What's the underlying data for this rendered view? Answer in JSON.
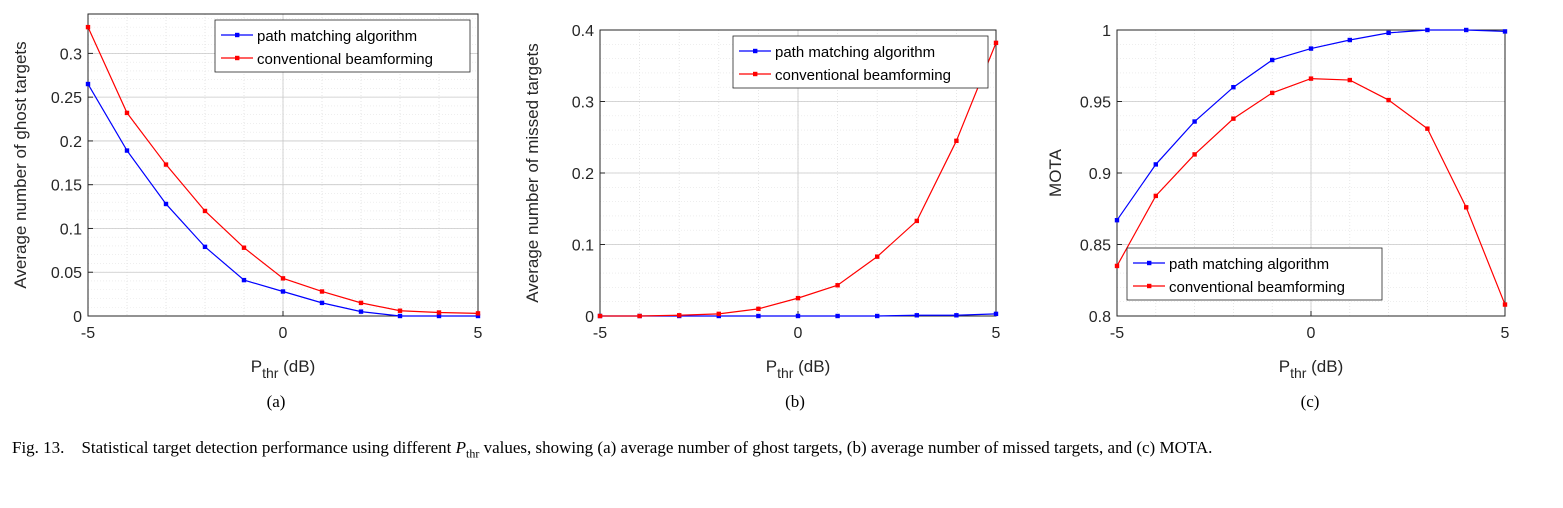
{
  "chart_data": [
    {
      "type": "line",
      "panel_label": "(a)",
      "xlabel_main": "P",
      "xlabel_sub": "thr",
      "xlabel_unit": " (dB)",
      "ylabel": "Average number of ghost targets",
      "xlim": [
        -5,
        5
      ],
      "ylim": [
        0,
        0.345
      ],
      "xticks": [
        -5,
        0,
        5
      ],
      "xtick_labels": [
        "-5",
        "0",
        "5"
      ],
      "yticks": [
        0,
        0.05,
        0.1,
        0.15,
        0.2,
        0.25,
        0.3
      ],
      "ytick_labels": [
        "0",
        "0.05",
        "0.1",
        "0.15",
        "0.2",
        "0.25",
        "0.3"
      ],
      "legend_position": "top-right",
      "x": [
        -5,
        -4,
        -3,
        -2,
        -1,
        0,
        1,
        2,
        3,
        4,
        5
      ],
      "series": [
        {
          "name": "path matching algorithm",
          "color": "#0000ff",
          "values": [
            0.265,
            0.189,
            0.128,
            0.079,
            0.041,
            0.028,
            0.015,
            0.005,
            0.0,
            0.0,
            0.0
          ]
        },
        {
          "name": "conventional beamforming",
          "color": "#ff0000",
          "values": [
            0.33,
            0.232,
            0.173,
            0.12,
            0.078,
            0.043,
            0.028,
            0.015,
            0.006,
            0.004,
            0.003
          ]
        }
      ]
    },
    {
      "type": "line",
      "panel_label": "(b)",
      "xlabel_main": "P",
      "xlabel_sub": "thr",
      "xlabel_unit": " (dB)",
      "ylabel": "Average number of missed targets",
      "xlim": [
        -5,
        5
      ],
      "ylim": [
        0,
        0.4
      ],
      "xticks": [
        -5,
        0,
        5
      ],
      "xtick_labels": [
        "-5",
        "0",
        "5"
      ],
      "yticks": [
        0,
        0.1,
        0.2,
        0.3,
        0.4
      ],
      "ytick_labels": [
        "0",
        "0.1",
        "0.2",
        "0.3",
        "0.4"
      ],
      "legend_position": "top-right",
      "x": [
        -5,
        -4,
        -3,
        -2,
        -1,
        0,
        1,
        2,
        3,
        4,
        5
      ],
      "series": [
        {
          "name": "path matching algorithm",
          "color": "#0000ff",
          "values": [
            0.0,
            0.0,
            0.0,
            0.0,
            0.0,
            0.0,
            0.0,
            0.0,
            0.001,
            0.001,
            0.003
          ]
        },
        {
          "name": "conventional beamforming",
          "color": "#ff0000",
          "values": [
            0.0,
            0.0,
            0.001,
            0.003,
            0.01,
            0.025,
            0.043,
            0.083,
            0.133,
            0.245,
            0.382
          ]
        }
      ]
    },
    {
      "type": "line",
      "panel_label": "(c)",
      "xlabel_main": "P",
      "xlabel_sub": "thr",
      "xlabel_unit": " (dB)",
      "ylabel": "MOTA",
      "xlim": [
        -5,
        5
      ],
      "ylim": [
        0.8,
        1.0
      ],
      "xticks": [
        -5,
        0,
        5
      ],
      "xtick_labels": [
        "-5",
        "0",
        "5"
      ],
      "yticks": [
        0.8,
        0.85,
        0.9,
        0.95,
        1.0
      ],
      "ytick_labels": [
        "0.8",
        "0.85",
        "0.9",
        "0.95",
        "1"
      ],
      "legend_position": "bottom-left",
      "x": [
        -5,
        -4,
        -3,
        -2,
        -1,
        0,
        1,
        2,
        3,
        4,
        5
      ],
      "series": [
        {
          "name": "path matching algorithm",
          "color": "#0000ff",
          "values": [
            0.867,
            0.906,
            0.936,
            0.96,
            0.979,
            0.987,
            0.993,
            0.998,
            1.0,
            1.0,
            0.999
          ]
        },
        {
          "name": "conventional beamforming",
          "color": "#ff0000",
          "values": [
            0.835,
            0.884,
            0.913,
            0.938,
            0.956,
            0.966,
            0.965,
            0.951,
            0.931,
            0.876,
            0.808
          ]
        }
      ]
    }
  ],
  "caption": {
    "fig_label": "Fig. 13.",
    "text_before": "Statistical target detection performance using different ",
    "symbol_main": "P",
    "symbol_sub": "thr",
    "text_after": " values, showing (a) average number of ghost targets, (b) average number of missed targets, and (c) MOTA."
  }
}
